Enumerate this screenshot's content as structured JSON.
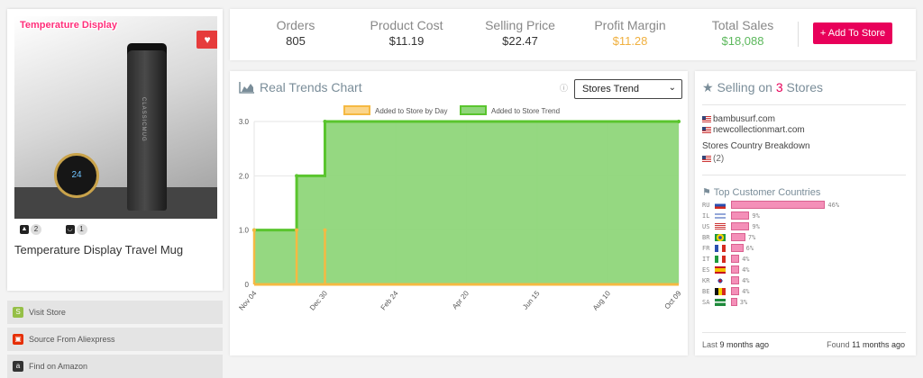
{
  "product": {
    "image_title": "Temperature Display",
    "mug_label": "CLASSICMUG",
    "display_value": "24",
    "name": "Temperature Display Travel Mug",
    "shopify_count": "2",
    "other_count": "1"
  },
  "actions": [
    {
      "label": "Visit Store",
      "icon": "shopify-icon",
      "color": "#95bf47"
    },
    {
      "label": "Source From Aliexpress",
      "icon": "aliexpress-icon",
      "color": "#e62e04"
    },
    {
      "label": "Find on Amazon",
      "icon": "amazon-icon",
      "color": "#333333"
    }
  ],
  "stats": [
    {
      "label": "Orders",
      "value": "805",
      "color": "#333333"
    },
    {
      "label": "Product Cost",
      "value": "$11.19",
      "color": "#333333"
    },
    {
      "label": "Selling Price",
      "value": "$22.47",
      "color": "#333333"
    },
    {
      "label": "Profit Margin",
      "value": "$11.28",
      "color": "#f0b03f"
    },
    {
      "label": "Total Sales",
      "value": "$18,088",
      "color": "#5cb85c"
    }
  ],
  "add_button": "+ Add To Store",
  "chart": {
    "title": "Real Trends Chart",
    "select_value": "Stores Trend"
  },
  "chart_data": {
    "type": "area",
    "legend": [
      "Added to Store by Day",
      "Added to Store Trend"
    ],
    "legend_position": "top",
    "x_ticks": [
      "Nov 04",
      "Dec 30",
      "Feb 24",
      "Apr 20",
      "Jun 15",
      "Aug 10",
      "Oct 09"
    ],
    "ylim": [
      0,
      3
    ],
    "y_ticks": [
      "0",
      "1.0",
      "2.0",
      "3.0"
    ],
    "grid": true,
    "series": [
      {
        "name": "Added to Store by Day",
        "color": "#f5b942",
        "x": [
          "Nov 04",
          "Dec 12",
          "Dec 30"
        ],
        "values": [
          1,
          1,
          1
        ]
      },
      {
        "name": "Added to Store Trend",
        "color": "#5ac52e",
        "x": [
          "Nov 04",
          "Dec 12",
          "Dec 30",
          "Oct 09"
        ],
        "values": [
          1,
          2,
          3,
          3
        ]
      }
    ]
  },
  "stores": {
    "title_prefix": "Selling on ",
    "count": "3",
    "title_suffix": " Stores",
    "store_list": [
      "bambusurf.com",
      "newcollectionmart.com"
    ],
    "breakdown_label": "Stores Country Breakdown",
    "breakdown_value": "(2)",
    "top_countries_label": "Top Customer Countries",
    "countries": [
      {
        "code": "RU",
        "pct": 46,
        "label": "46%"
      },
      {
        "code": "IL",
        "pct": 9,
        "label": "9%"
      },
      {
        "code": "US",
        "pct": 9,
        "label": "9%"
      },
      {
        "code": "BR",
        "pct": 7,
        "label": "7%"
      },
      {
        "code": "FR",
        "pct": 6,
        "label": "6%"
      },
      {
        "code": "IT",
        "pct": 4,
        "label": "4%"
      },
      {
        "code": "ES",
        "pct": 4,
        "label": "4%"
      },
      {
        "code": "KR",
        "pct": 4,
        "label": "4%"
      },
      {
        "code": "BE",
        "pct": 4,
        "label": "4%"
      },
      {
        "code": "SA",
        "pct": 3,
        "label": "3%"
      }
    ],
    "last_prefix": "Last ",
    "last_value": "9 months ago",
    "found_prefix": "Found ",
    "found_value": "11 months ago"
  }
}
